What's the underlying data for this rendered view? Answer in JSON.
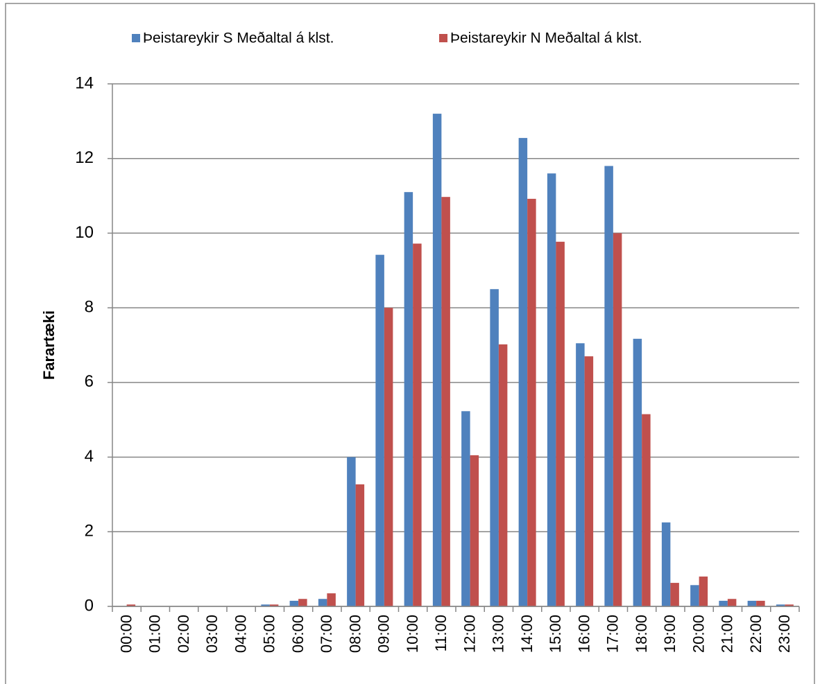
{
  "chart_data": {
    "type": "bar",
    "y_axis_label": "Farartæki",
    "categories": [
      "00:00",
      "01:00",
      "02:00",
      "03:00",
      "04:00",
      "05:00",
      "06:00",
      "07:00",
      "08:00",
      "09:00",
      "10:00",
      "11:00",
      "12:00",
      "13:00",
      "14:00",
      "15:00",
      "16:00",
      "17:00",
      "18:00",
      "19:00",
      "20:00",
      "21:00",
      "22:00",
      "23:00"
    ],
    "series": [
      {
        "name": "Þeistareykir S Meðaltal á klst.",
        "color": "#4f81bd",
        "values": [
          0,
          0,
          0,
          0,
          0,
          0.05,
          0.15,
          0.2,
          4.0,
          9.42,
          11.1,
          13.2,
          5.23,
          8.5,
          12.55,
          11.6,
          7.05,
          11.8,
          7.17,
          2.25,
          0.57,
          0.15,
          0.15,
          0.05
        ]
      },
      {
        "name": "Þeistareykir N Meðaltal á klst.",
        "color": "#c0504d",
        "values": [
          0.05,
          0,
          0,
          0,
          0,
          0.05,
          0.2,
          0.35,
          3.27,
          8.0,
          9.72,
          10.97,
          4.05,
          7.02,
          10.92,
          9.77,
          6.7,
          10.0,
          5.15,
          0.63,
          0.8,
          0.2,
          0.15,
          0.05
        ]
      }
    ],
    "ylim": [
      0,
      14
    ],
    "yticks": [
      0,
      2,
      4,
      6,
      8,
      10,
      12,
      14
    ],
    "grid": true,
    "legend": "top"
  }
}
